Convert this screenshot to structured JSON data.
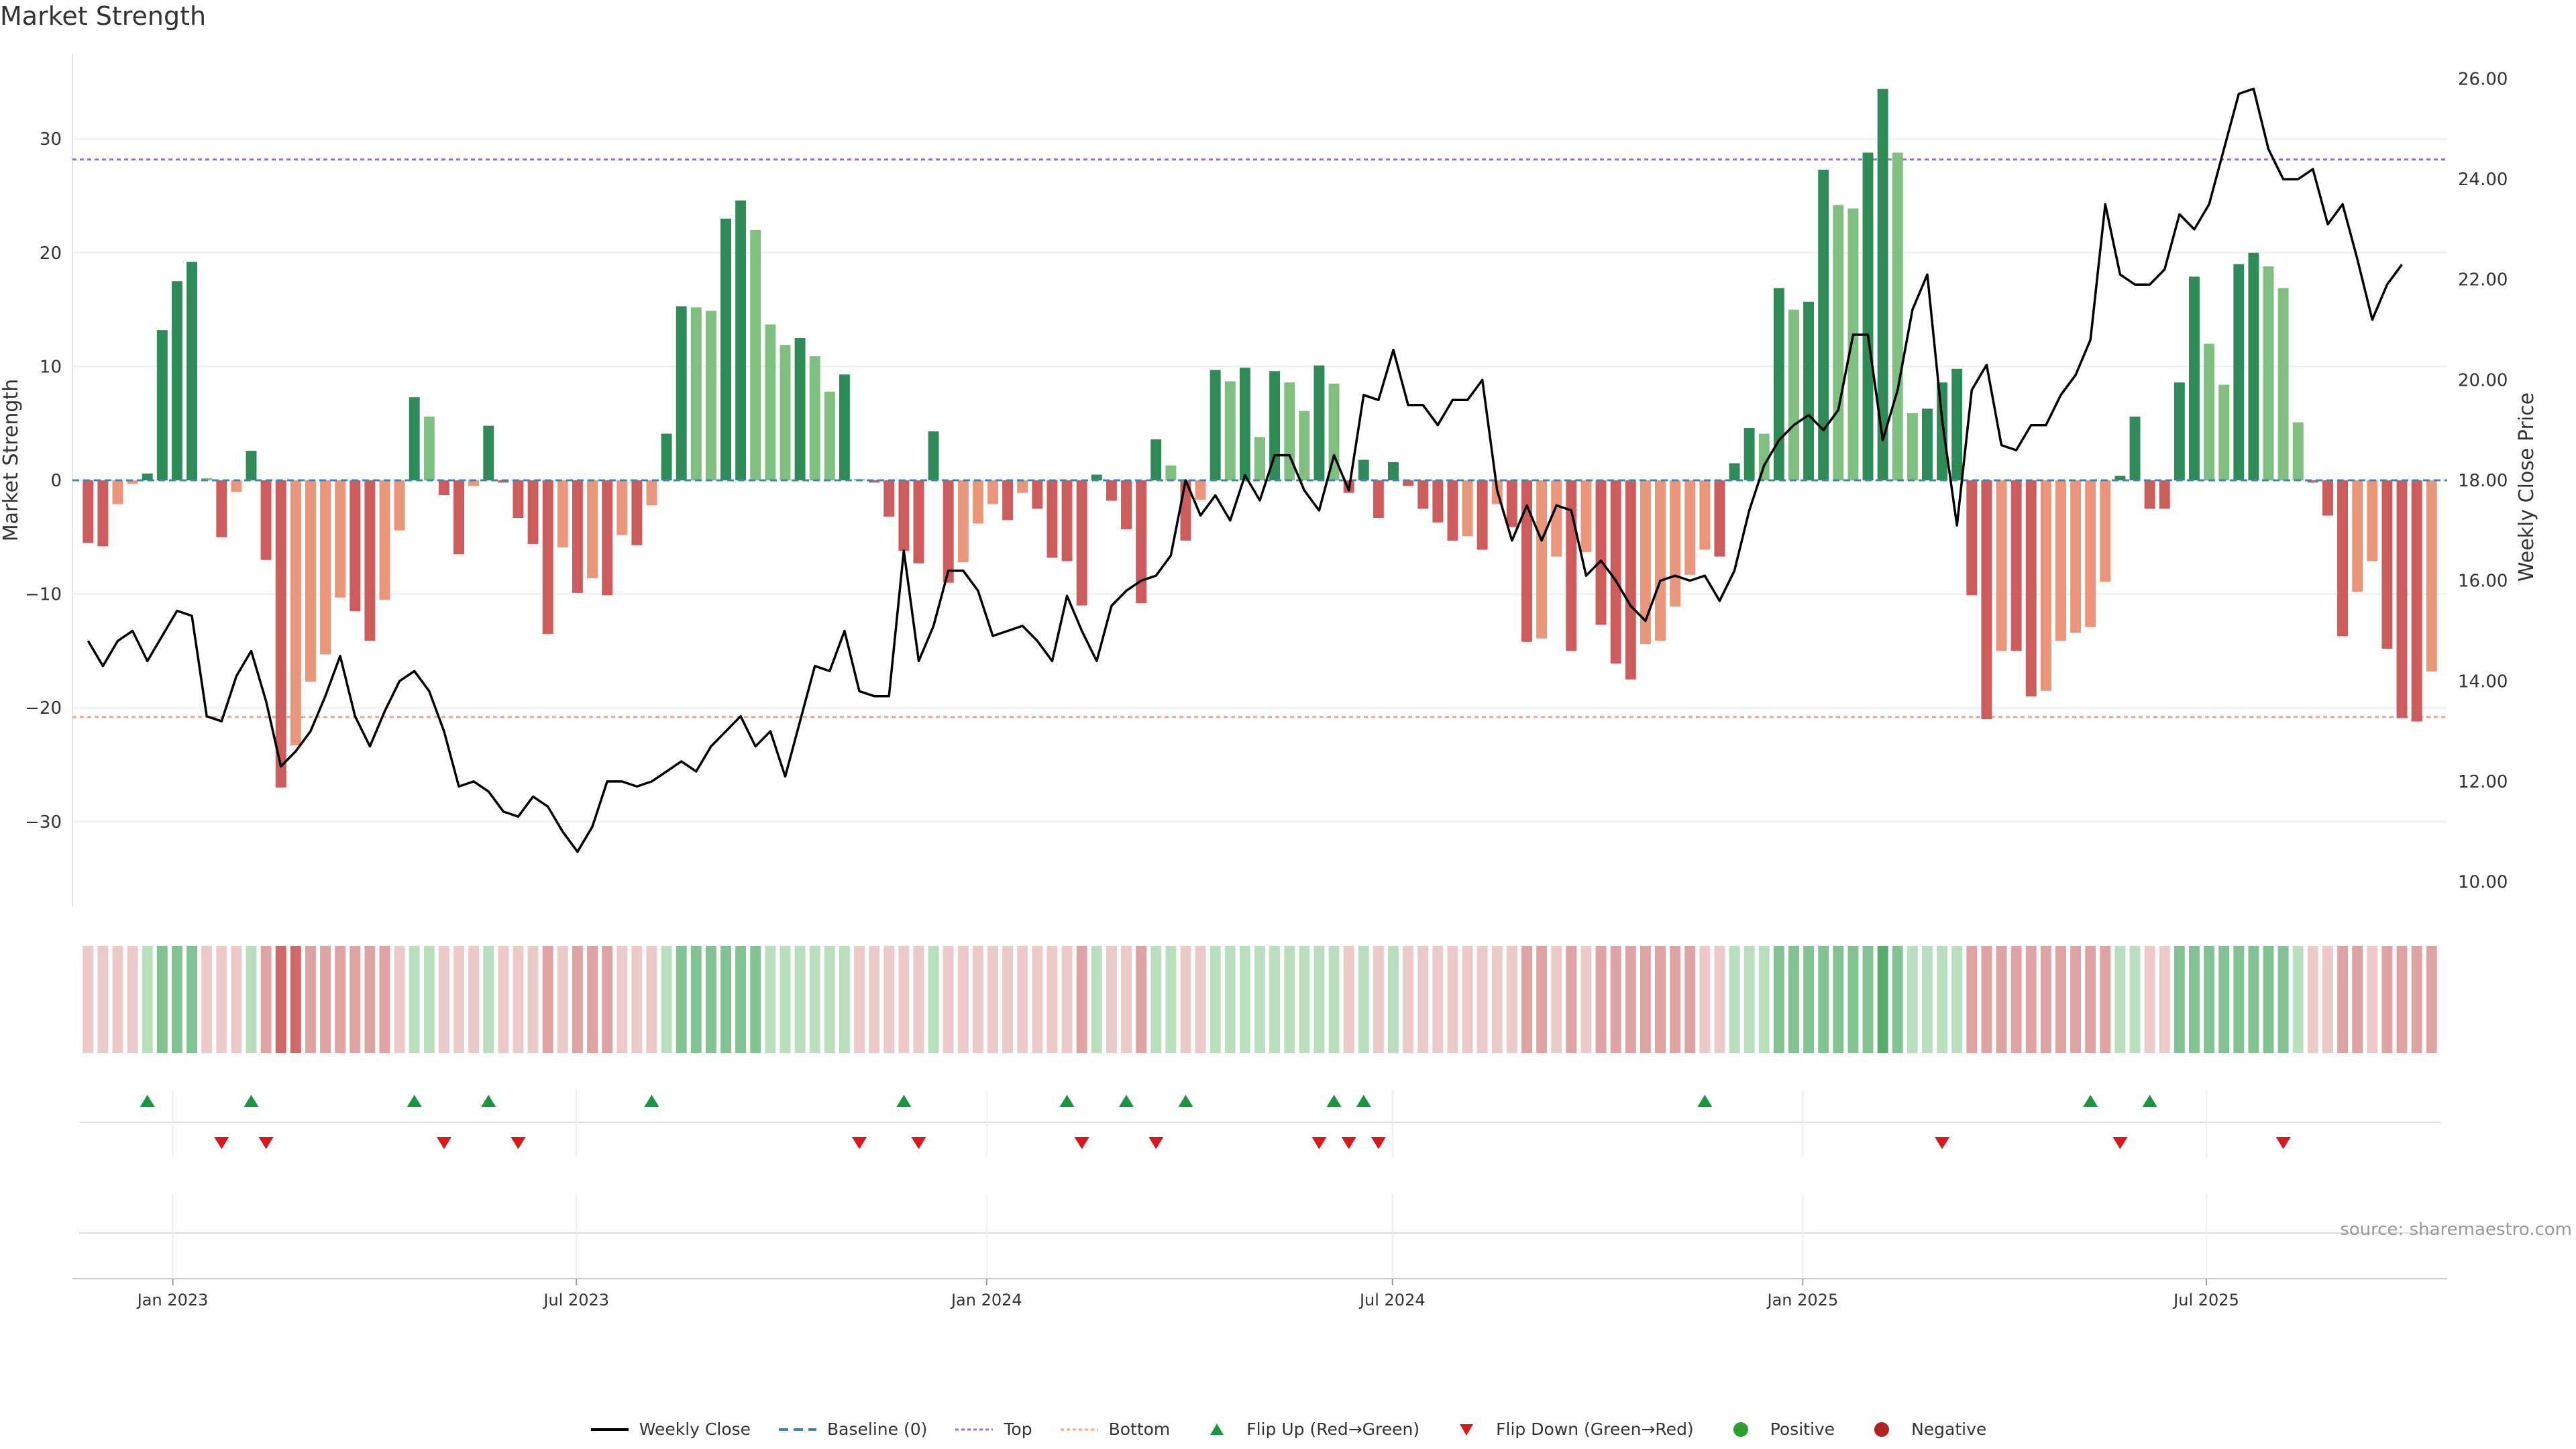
{
  "chart_data": {
    "title": "Market Strength",
    "type": "bar+line",
    "source": "source: sharemaestro.com",
    "x_ticks": [
      "Jan 2023",
      "Jul 2023",
      "Jan 2024",
      "Jul 2024",
      "Jan 2025",
      "Jul 2025"
    ],
    "x_range": [
      "2022-11-17",
      "2025-10-17"
    ],
    "left_axis": {
      "label": "Market Strength",
      "range": [
        -37.5,
        37.5
      ],
      "ticks": [
        "30",
        "20",
        "10",
        "0",
        "−10",
        "−20",
        "−30"
      ],
      "tick_values": [
        30,
        20,
        10,
        0,
        -10,
        -20,
        -30
      ]
    },
    "right_axis": {
      "label": "Weekly Close Price",
      "range": [
        9.5,
        26.5
      ],
      "ticks": [
        "26.00",
        "24.00",
        "22.00",
        "20.00",
        "18.00",
        "16.00",
        "14.00",
        "12.00",
        "10.00"
      ],
      "tick_values": [
        26,
        24,
        22,
        20,
        18,
        16,
        14,
        12,
        10
      ]
    },
    "top_threshold": 28.2,
    "bottom_threshold": -20.8,
    "grid": "horizontal",
    "colors": {
      "strong_pos": "#2e8b57",
      "weak_pos": "#7fbf7f",
      "strong_neg": "#cd5c5c",
      "weak_neg": "#e9967a",
      "top_line": "#9370db",
      "bottom_line": "#f4a582",
      "baseline": "#4682b4",
      "price_line": "#000000",
      "flip_up": "#1a9641",
      "flip_down": "#d7191c"
    },
    "series": {
      "strength": [
        -5.5,
        -5.8,
        -2.1,
        -0.3,
        0.6,
        13.2,
        17.5,
        19.2,
        0.2,
        -5.0,
        -1.0,
        2.6,
        -7.0,
        -27.0,
        -23.3,
        -17.7,
        -15.3,
        -10.3,
        -11.5,
        -14.1,
        -10.5,
        -4.4,
        7.3,
        5.6,
        -1.3,
        -6.5,
        -0.5,
        4.8,
        -0.2,
        -3.3,
        -5.6,
        -13.5,
        -5.9,
        -9.9,
        -8.6,
        -10.1,
        -4.8,
        -5.7,
        -2.2,
        4.1,
        15.3,
        15.2,
        14.9,
        23.0,
        24.6,
        22.0,
        13.7,
        11.9,
        12.5,
        10.9,
        7.8,
        9.3,
        0.1,
        -0.2,
        -3.2,
        -6.2,
        -7.3,
        4.3,
        -9.0,
        -7.2,
        -3.8,
        -2.1,
        -3.5,
        -1.1,
        -2.5,
        -6.8,
        -7.1,
        -11.0,
        0.5,
        -1.8,
        -4.3,
        -10.8,
        3.6,
        1.3,
        -5.3,
        -1.7,
        9.7,
        8.7,
        9.9,
        3.8,
        9.6,
        8.6,
        6.1,
        10.1,
        8.5,
        -1.1,
        1.8,
        -3.3,
        1.6,
        -0.5,
        -2.5,
        -3.7,
        -5.3,
        -4.9,
        -6.1,
        -2.1,
        -4.1,
        -14.2,
        -13.9,
        -6.7,
        -15.0,
        -6.3,
        -12.7,
        -16.1,
        -17.5,
        -14.4,
        -14.1,
        -11.1,
        -8.3,
        -6.1,
        -6.7,
        1.5,
        4.6,
        4.1,
        16.9,
        15.0,
        15.7,
        27.3,
        24.2,
        23.9,
        28.8,
        34.4,
        28.8,
        5.9,
        6.3,
        8.6,
        9.8,
        -10.1,
        -21.0,
        -15.0,
        -15.0,
        -19.0,
        -18.5,
        -14.1,
        -13.4,
        -12.9,
        -8.9,
        0.4,
        5.6,
        -2.5,
        -2.5,
        8.6,
        17.9,
        12.0,
        8.4,
        19.0,
        20.0,
        18.8,
        16.9,
        5.1,
        -0.2,
        -3.1,
        -13.7,
        -9.8,
        -7.1,
        -14.8,
        -20.9,
        -21.2,
        -16.8
      ],
      "weekly_close": [
        14.8,
        14.3,
        14.8,
        15.0,
        14.4,
        14.9,
        15.4,
        15.3,
        13.3,
        13.2,
        14.1,
        14.6,
        13.6,
        12.3,
        12.6,
        13.0,
        13.7,
        14.5,
        13.3,
        12.7,
        13.4,
        14.0,
        14.2,
        13.8,
        13.0,
        11.9,
        12.0,
        11.8,
        11.4,
        11.3,
        11.7,
        11.5,
        11.0,
        10.6,
        11.1,
        12.0,
        12.0,
        11.9,
        12.0,
        12.2,
        12.4,
        12.2,
        12.7,
        13.0,
        13.3,
        12.7,
        13.0,
        12.1,
        13.2,
        14.3,
        14.2,
        15.0,
        13.8,
        13.7,
        13.7,
        16.6,
        14.4,
        15.1,
        16.2,
        16.2,
        15.8,
        14.9,
        15.0,
        15.1,
        14.8,
        14.4,
        15.7,
        15.0,
        14.4,
        15.5,
        15.8,
        16.0,
        16.1,
        16.5,
        18.0,
        17.3,
        17.7,
        17.2,
        18.1,
        17.6,
        18.5,
        18.5,
        17.8,
        17.4,
        18.5,
        17.8,
        19.7,
        19.6,
        20.6,
        19.5,
        19.5,
        19.1,
        19.6,
        19.6,
        20.0,
        17.8,
        16.8,
        17.5,
        16.8,
        17.5,
        17.4,
        16.1,
        16.4,
        16.0,
        15.5,
        15.2,
        16.0,
        16.1,
        16.0,
        16.1,
        15.6,
        16.2,
        17.4,
        18.3,
        18.8,
        19.1,
        19.3,
        19.0,
        19.4,
        20.9,
        20.9,
        18.8,
        19.8,
        21.4,
        22.1,
        19.2,
        17.1,
        19.8,
        20.3,
        18.7,
        18.6,
        19.1,
        19.1,
        19.7,
        20.1,
        20.8,
        23.5,
        22.1,
        21.9,
        21.9,
        22.2,
        23.3,
        23.0,
        23.5,
        24.6,
        25.7,
        25.8,
        24.6,
        24.0,
        24.0,
        24.2,
        23.1,
        23.5,
        22.4,
        21.2,
        21.9,
        22.3
      ],
      "state_band": [
        -1,
        -1,
        -1,
        -1,
        1,
        2,
        2,
        2,
        -1,
        -1,
        -1,
        1,
        -2,
        -3,
        -3,
        -2,
        -2,
        -2,
        -2,
        -2,
        -2,
        -1,
        1,
        1,
        -1,
        -1,
        -1,
        1,
        -1,
        -1,
        -1,
        -2,
        -1,
        -2,
        -2,
        -2,
        -1,
        -1,
        -1,
        1,
        2,
        2,
        2,
        2,
        2,
        2,
        1,
        1,
        1,
        1,
        1,
        1,
        -1,
        -1,
        -1,
        -1,
        -1,
        1,
        -1,
        -1,
        -1,
        -1,
        -1,
        -1,
        -1,
        -1,
        -1,
        -2,
        1,
        -1,
        -1,
        -2,
        1,
        1,
        -1,
        -1,
        1,
        1,
        1,
        1,
        1,
        1,
        1,
        1,
        1,
        -1,
        1,
        -1,
        1,
        -1,
        -1,
        -1,
        -1,
        -1,
        -1,
        -1,
        -1,
        -2,
        -2,
        -1,
        -2,
        -1,
        -2,
        -2,
        -2,
        -2,
        -2,
        -2,
        -2,
        -1,
        -1,
        1,
        1,
        1,
        2,
        2,
        2,
        2,
        2,
        2,
        2,
        3,
        2,
        1,
        1,
        1,
        1,
        -2,
        -2,
        -2,
        -2,
        -2,
        -2,
        -2,
        -2,
        -2,
        -2,
        1,
        1,
        -1,
        -1,
        2,
        2,
        2,
        2,
        2,
        2,
        2,
        2,
        1,
        -1,
        -1,
        -2,
        -2,
        -1,
        -2,
        -2,
        -2,
        -2
      ],
      "flip_up_weeks": [
        4,
        11,
        22,
        27,
        38,
        55,
        66,
        70,
        74,
        84,
        86,
        109,
        135,
        139
      ],
      "flip_down_weeks": [
        9,
        12,
        24,
        29,
        52,
        56,
        67,
        72,
        83,
        85,
        87,
        125,
        137,
        148
      ]
    }
  },
  "legend": [
    {
      "label": "Weekly Close",
      "swatch": "solid-line",
      "color": "#000000"
    },
    {
      "label": "Baseline (0)",
      "swatch": "dashed-line",
      "color": "#4682b4"
    },
    {
      "label": "Top",
      "swatch": "dotted-line",
      "color": "#9370db"
    },
    {
      "label": "Bottom",
      "swatch": "dotted-line",
      "color": "#f4a582"
    },
    {
      "label": "Flip Up (Red→Green)",
      "swatch": "triangle-up",
      "color": "#1a9641"
    },
    {
      "label": "Flip Down (Green→Red)",
      "swatch": "triangle-down",
      "color": "#d7191c"
    },
    {
      "label": "Positive",
      "swatch": "circle",
      "color": "#2ca02c"
    },
    {
      "label": "Negative",
      "swatch": "circle",
      "color": "#b22222"
    }
  ]
}
